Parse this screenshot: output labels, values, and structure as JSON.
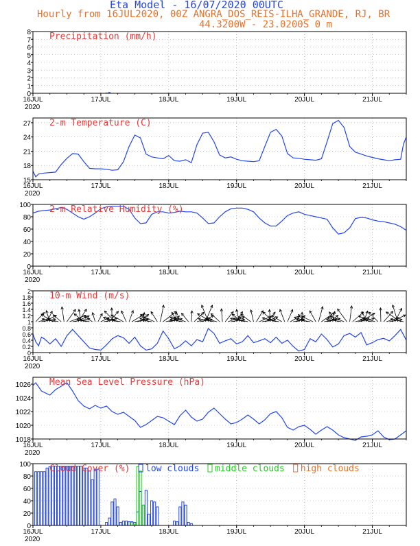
{
  "header": {
    "title": "Eta Model - 16/07/2020 00UTC",
    "subtitle": "Hourly from 16JUL2020, 00Z  ANGRA_DOS_REIS-ILHA_GRANDE, RJ, BR",
    "coords": "44.3200W - 23.0200S      0  m"
  },
  "colors": {
    "series": "#2244ee",
    "title": "#e83838",
    "orange": "#e8702a",
    "green": "#22cc22",
    "vector": "#000000",
    "grid": "#999999"
  },
  "time_axis": {
    "labels": [
      "16JUL",
      "17JUL",
      "18JUL",
      "19JUL",
      "20JUL",
      "21JUL"
    ],
    "label_hours": [
      0,
      24,
      48,
      72,
      96,
      120
    ],
    "year": "2020",
    "range": [
      0,
      132
    ]
  },
  "chart_data": [
    {
      "type": "bar",
      "id": "precip",
      "title": "Precipitation (mm/h)",
      "ylim": [
        0,
        8
      ],
      "yticks": [
        0,
        1,
        2,
        3,
        4,
        5,
        6,
        7,
        8
      ],
      "x": [
        7,
        8,
        26,
        27,
        30,
        43,
        48
      ],
      "values": [
        0.05,
        0.05,
        0.08,
        0.15,
        0.05,
        0.05,
        0.05
      ]
    },
    {
      "type": "line",
      "id": "temp",
      "title": "2-m Temperature (C)",
      "ylim": [
        15,
        28
      ],
      "yticks": [
        15,
        18,
        21,
        24,
        27
      ],
      "x": [
        0,
        1,
        2,
        4,
        8,
        10,
        12,
        14,
        16,
        18,
        20,
        22,
        24,
        26,
        28,
        30,
        32,
        34,
        36,
        38,
        40,
        42,
        44,
        46,
        48,
        50,
        52,
        54,
        56,
        58,
        60,
        62,
        64,
        66,
        68,
        70,
        72,
        74,
        76,
        78,
        80,
        82,
        84,
        86,
        88,
        90,
        92,
        94,
        96,
        98,
        100,
        102,
        104,
        106,
        108,
        110,
        112,
        114,
        116,
        118,
        120,
        122,
        124,
        126,
        128,
        130,
        131,
        132
      ],
      "values": [
        16.8,
        15.6,
        16.2,
        16.4,
        16.6,
        18.2,
        19.5,
        20.5,
        20.4,
        18.8,
        17.4,
        17.3,
        17.3,
        17.2,
        17.0,
        17.1,
        18.8,
        22.0,
        24.4,
        23.8,
        20.4,
        19.8,
        19.6,
        19.4,
        20.1,
        19.0,
        18.9,
        19.2,
        18.6,
        22.4,
        24.8,
        25.0,
        23.0,
        20.2,
        19.6,
        19.8,
        19.3,
        19.0,
        18.9,
        18.8,
        19.0,
        22.0,
        25.0,
        25.6,
        24.2,
        20.5,
        19.6,
        19.5,
        19.3,
        19.2,
        19.1,
        19.4,
        23.0,
        26.8,
        27.5,
        26.0,
        22.0,
        20.8,
        20.4,
        20.0,
        19.7,
        19.4,
        19.2,
        19.0,
        19.2,
        19.3,
        22.5,
        24.0
      ]
    },
    {
      "type": "line",
      "id": "rh",
      "title": "2-m Relative Humidity (%)",
      "ylim": [
        0,
        100
      ],
      "yticks": [
        0,
        20,
        40,
        60,
        80,
        100
      ],
      "x": [
        0,
        2,
        6,
        10,
        12,
        14,
        16,
        18,
        20,
        22,
        24,
        26,
        28,
        32,
        34,
        36,
        38,
        40,
        42,
        44,
        46,
        48,
        50,
        52,
        54,
        56,
        58,
        60,
        62,
        64,
        66,
        68,
        70,
        72,
        74,
        76,
        78,
        80,
        82,
        84,
        86,
        88,
        90,
        92,
        94,
        96,
        98,
        100,
        102,
        104,
        106,
        108,
        110,
        112,
        114,
        116,
        118,
        120,
        122,
        124,
        126,
        128,
        130,
        132
      ],
      "values": [
        86,
        89,
        91,
        95,
        92,
        86,
        80,
        76,
        80,
        86,
        93,
        96,
        97,
        97,
        92,
        78,
        69,
        70,
        84,
        88,
        88,
        86,
        87,
        89,
        88,
        88,
        86,
        78,
        69,
        70,
        80,
        88,
        93,
        94,
        94,
        92,
        88,
        78,
        70,
        65,
        65,
        73,
        82,
        86,
        88,
        84,
        82,
        80,
        78,
        76,
        62,
        52,
        54,
        62,
        77,
        79,
        78,
        75,
        73,
        72,
        70,
        68,
        64,
        58
      ]
    },
    {
      "type": "line+vector",
      "id": "wind",
      "title": "10-m Wind (m/s)",
      "ylim": [
        0,
        2
      ],
      "yticks": [
        0,
        0.2,
        0.4,
        0.6,
        0.8,
        1,
        1.2,
        1.4,
        1.6,
        1.8,
        2
      ],
      "x": [
        0,
        1,
        2,
        3,
        4,
        6,
        8,
        10,
        12,
        14,
        16,
        18,
        20,
        22,
        24,
        26,
        28,
        30,
        32,
        34,
        36,
        38,
        40,
        42,
        44,
        46,
        48,
        50,
        52,
        54,
        56,
        58,
        60,
        62,
        64,
        66,
        68,
        70,
        72,
        74,
        76,
        78,
        80,
        82,
        84,
        86,
        88,
        90,
        92,
        94,
        96,
        98,
        100,
        102,
        104,
        106,
        108,
        110,
        112,
        114,
        116,
        118,
        120,
        122,
        124,
        126,
        128,
        130,
        132
      ],
      "values": [
        0.6,
        0.35,
        0.22,
        0.5,
        0.45,
        0.28,
        0.45,
        0.2,
        0.55,
        0.75,
        0.55,
        0.35,
        0.15,
        0.1,
        0.08,
        0.25,
        0.45,
        0.55,
        0.48,
        0.3,
        0.5,
        0.22,
        0.08,
        0.12,
        0.3,
        0.7,
        0.45,
        0.12,
        0.22,
        0.38,
        0.22,
        0.42,
        0.35,
        0.78,
        0.62,
        0.3,
        0.38,
        0.45,
        0.28,
        0.35,
        0.55,
        0.32,
        0.38,
        0.45,
        0.32,
        0.5,
        0.3,
        0.4,
        0.2,
        0.05,
        0.1,
        0.45,
        0.35,
        0.6,
        0.42,
        0.18,
        0.28,
        0.55,
        0.62,
        0.5,
        0.65,
        0.25,
        0.32,
        0.42,
        0.46,
        0.38,
        0.55,
        0.75,
        0.4
      ],
      "vector_stats": "arrows every 1 h at 1.0 m/s level, length ∝ speed"
    },
    {
      "type": "line",
      "id": "mslp",
      "title": "Mean Sea Level Pressure (hPa)",
      "ylim": [
        1018,
        1027
      ],
      "yticks": [
        1018,
        1020,
        1022,
        1024,
        1026
      ],
      "x": [
        0,
        1,
        3,
        6,
        8,
        12,
        14,
        16,
        18,
        20,
        22,
        24,
        26,
        28,
        30,
        32,
        34,
        36,
        38,
        40,
        42,
        44,
        46,
        48,
        50,
        52,
        54,
        56,
        58,
        60,
        62,
        64,
        66,
        68,
        70,
        72,
        74,
        76,
        78,
        80,
        82,
        84,
        86,
        88,
        90,
        92,
        94,
        96,
        98,
        100,
        102,
        104,
        106,
        108,
        110,
        112,
        114,
        116,
        118,
        120,
        122,
        124,
        126,
        128,
        130,
        132
      ],
      "values": [
        1025.8,
        1026.2,
        1025.0,
        1024.4,
        1025.2,
        1026.2,
        1025.0,
        1023.6,
        1022.8,
        1022.4,
        1022.9,
        1022.5,
        1022.8,
        1022.0,
        1021.6,
        1021.9,
        1021.3,
        1020.7,
        1019.7,
        1020.1,
        1020.7,
        1021.3,
        1021.1,
        1020.6,
        1020.1,
        1021.4,
        1022.2,
        1021.2,
        1020.6,
        1020.9,
        1021.9,
        1022.5,
        1021.7,
        1020.9,
        1020.2,
        1020.4,
        1020.9,
        1021.5,
        1020.9,
        1020.2,
        1020.8,
        1021.7,
        1022.0,
        1021.1,
        1019.7,
        1019.3,
        1019.8,
        1020.0,
        1019.4,
        1018.7,
        1019.3,
        1019.8,
        1019.3,
        1018.6,
        1018.2,
        1018.0,
        1017.8,
        1018.3,
        1018.4,
        1018.6,
        1019.2,
        1018.3,
        1017.9,
        1018.0,
        1018.6,
        1019.2
      ]
    },
    {
      "type": "bar",
      "id": "cloud",
      "title": "Cloud Cover (%)",
      "ylim": [
        0,
        100
      ],
      "yticks": [
        0,
        20,
        40,
        60,
        80,
        100
      ],
      "legend": [
        {
          "label": "low clouds",
          "color": "#2244ee"
        },
        {
          "label": "middle clouds",
          "color": "#22cc22"
        },
        {
          "label": "high clouds",
          "color": "#e8702a"
        }
      ],
      "series": [
        {
          "name": "low clouds",
          "x": [
            1,
            2,
            3,
            4,
            5,
            6,
            7,
            8,
            9,
            10,
            11,
            12,
            13,
            14,
            15,
            16,
            17,
            18,
            19,
            20,
            21,
            22,
            23,
            26,
            27,
            28,
            29,
            30,
            31,
            32,
            33,
            34,
            35,
            36,
            37,
            38,
            39,
            40,
            41,
            42,
            43,
            44,
            50,
            51,
            52,
            53,
            54,
            55,
            56
          ],
          "values": [
            87,
            87,
            87,
            87,
            93,
            95,
            96,
            96,
            96,
            96,
            96,
            96,
            96,
            96,
            96,
            96,
            96,
            93,
            93,
            88,
            74,
            91,
            91,
            5,
            12,
            38,
            43,
            30,
            5,
            7,
            7,
            6,
            6,
            5,
            22,
            55,
            33,
            57,
            18,
            40,
            38,
            30,
            7,
            6,
            30,
            38,
            33,
            5,
            3
          ]
        },
        {
          "name": "middle clouds",
          "x": [
            35,
            36,
            37,
            38,
            39
          ],
          "values": [
            5,
            2,
            95,
            88,
            33
          ]
        },
        {
          "name": "high clouds",
          "x": [],
          "values": []
        }
      ]
    }
  ]
}
